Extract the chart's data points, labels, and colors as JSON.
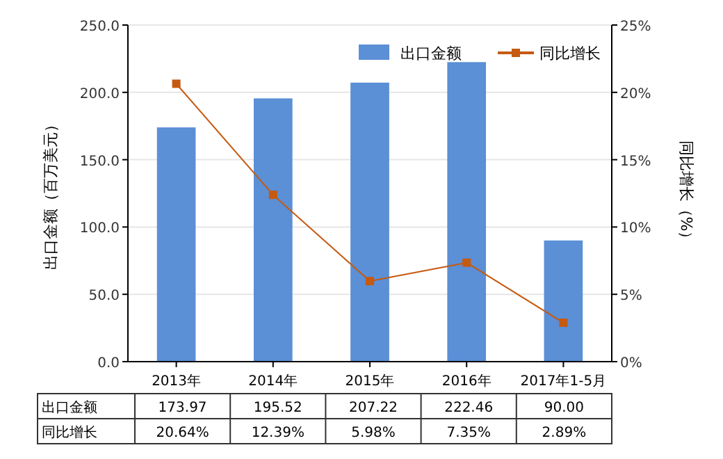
{
  "chart_data": {
    "type": "bar",
    "ylabel": "出口金额（百万美元）",
    "y2label": "同比增长（%）",
    "categories": [
      "2013年",
      "2014年",
      "2015年",
      "2016年",
      "2017年1-5月"
    ],
    "series": [
      {
        "name": "出口金额",
        "color": "#5b8fd6",
        "values": [
          173.97,
          195.52,
          207.22,
          222.46,
          90.0
        ],
        "value_labels": [
          "173.97",
          "195.52",
          "207.22",
          "222.46",
          "90.00"
        ]
      },
      {
        "name": "同比增长",
        "type": "line",
        "axis": "y2",
        "color": "#c55a11",
        "marker": "square",
        "values": [
          20.64,
          12.39,
          5.98,
          7.35,
          2.89
        ],
        "value_labels": [
          "20.64%",
          "12.39%",
          "5.98%",
          "7.35%",
          "2.89%"
        ]
      }
    ],
    "ylim": [
      0,
      250
    ],
    "yticks": [
      {
        "value": 0,
        "label": "0.0"
      },
      {
        "value": 50,
        "label": "50.0"
      },
      {
        "value": 100,
        "label": "100.0"
      },
      {
        "value": 150,
        "label": "150.0"
      },
      {
        "value": 200,
        "label": "200.0"
      },
      {
        "value": 250,
        "label": "250.0"
      }
    ],
    "y2lim": [
      0,
      25
    ],
    "y2ticks": [
      {
        "value": 0,
        "label": "0%"
      },
      {
        "value": 5,
        "label": "5%"
      },
      {
        "value": 10,
        "label": "10%"
      },
      {
        "value": 15,
        "label": "15%"
      },
      {
        "value": 20,
        "label": "20%"
      },
      {
        "value": 25,
        "label": "25%"
      }
    ],
    "grid": "y",
    "legend": "top right"
  }
}
